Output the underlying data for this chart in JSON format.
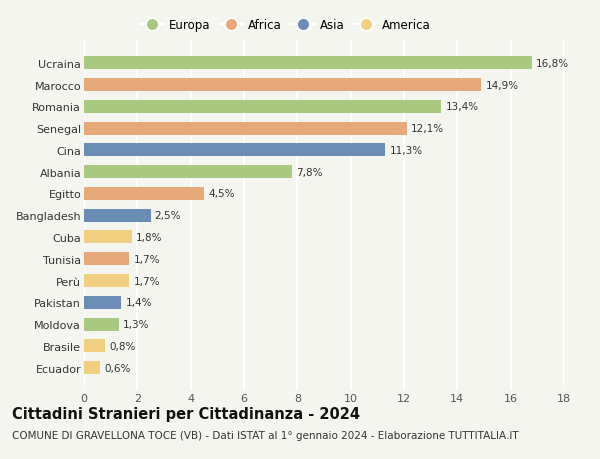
{
  "countries": [
    "Ucraina",
    "Marocco",
    "Romania",
    "Senegal",
    "Cina",
    "Albania",
    "Egitto",
    "Bangladesh",
    "Cuba",
    "Tunisia",
    "Perù",
    "Pakistan",
    "Moldova",
    "Brasile",
    "Ecuador"
  ],
  "values": [
    16.8,
    14.9,
    13.4,
    12.1,
    11.3,
    7.8,
    4.5,
    2.5,
    1.8,
    1.7,
    1.7,
    1.4,
    1.3,
    0.8,
    0.6
  ],
  "labels": [
    "16,8%",
    "14,9%",
    "13,4%",
    "12,1%",
    "11,3%",
    "7,8%",
    "4,5%",
    "2,5%",
    "1,8%",
    "1,7%",
    "1,7%",
    "1,4%",
    "1,3%",
    "0,8%",
    "0,6%"
  ],
  "continents": [
    "Europa",
    "Africa",
    "Europa",
    "Africa",
    "Asia",
    "Europa",
    "Africa",
    "Asia",
    "America",
    "Africa",
    "America",
    "Asia",
    "Europa",
    "America",
    "America"
  ],
  "colors": {
    "Europa": "#a8c97f",
    "Africa": "#e8a97a",
    "Asia": "#6b8db5",
    "America": "#f0d080"
  },
  "legend_order": [
    "Europa",
    "Africa",
    "Asia",
    "America"
  ],
  "xlim": [
    0,
    18
  ],
  "xticks": [
    0,
    2,
    4,
    6,
    8,
    10,
    12,
    14,
    16,
    18
  ],
  "title": "Cittadini Stranieri per Cittadinanza - 2024",
  "subtitle": "COMUNE DI GRAVELLONA TOCE (VB) - Dati ISTAT al 1° gennaio 2024 - Elaborazione TUTTITALIA.IT",
  "background_color": "#f5f5f0",
  "bar_height": 0.6,
  "title_fontsize": 10.5,
  "subtitle_fontsize": 7.5,
  "label_fontsize": 7.5,
  "ytick_fontsize": 8,
  "xtick_fontsize": 8
}
